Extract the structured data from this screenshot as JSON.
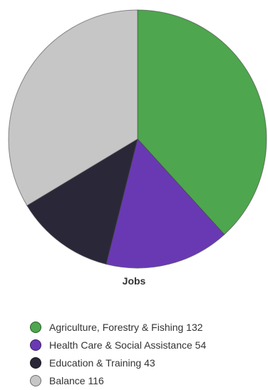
{
  "chart_data": {
    "type": "pie",
    "title": "Jobs",
    "categories": [
      "Agriculture, Forestry & Fishing",
      "Health Care & Social Assistance",
      "Education & Training",
      "Balance"
    ],
    "values": [
      132,
      54,
      43,
      116
    ],
    "colors": [
      "#4ea64e",
      "#6939b4",
      "#2a2838",
      "#c6c6c6"
    ],
    "legend": [
      {
        "label": "Agriculture, Forestry & Fishing 132",
        "color": "#4ea64e"
      },
      {
        "label": "Health Care & Social Assistance 54",
        "color": "#6939b4"
      },
      {
        "label": "Education & Training 43",
        "color": "#2a2838"
      },
      {
        "label": "Balance 116",
        "color": "#c6c6c6"
      }
    ],
    "legend_position": "bottom"
  }
}
